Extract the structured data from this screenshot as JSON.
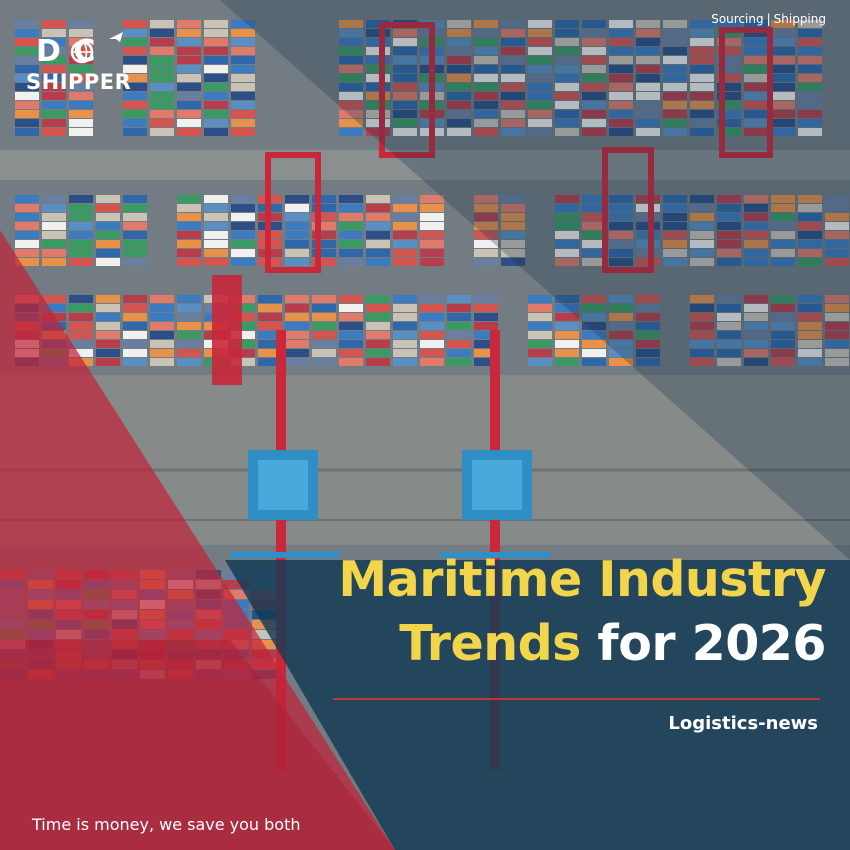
{
  "brand": {
    "logo_top": "D  C",
    "logo_bottom": "SHIPPER",
    "logo_colors": {
      "text": "#ffffff"
    }
  },
  "top_nav": {
    "items": [
      {
        "label": "Sourcing"
      },
      {
        "label": "Shipping"
      }
    ],
    "separator": "|"
  },
  "headline": {
    "line1": "Maritime Industry",
    "line2_highlight": "Trends",
    "line2_rest": " for 2026"
  },
  "category": "Logistics-news",
  "tagline": "Time is money, we save you both",
  "colors": {
    "accent_yellow": "#f2d54a",
    "accent_red": "#c0343c",
    "overlay_navy": "#123a55",
    "text_white": "#ffffff"
  },
  "background": {
    "subject": "aerial view of container port with cranes"
  }
}
